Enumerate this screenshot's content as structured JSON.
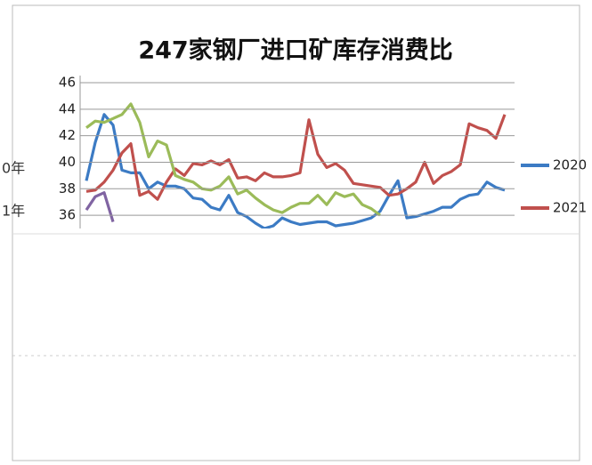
{
  "chart_data": {
    "type": "line",
    "title": "247家钢厂进口矿库存消费比",
    "side_labels": [
      "0年",
      "1年"
    ],
    "categories": [
      null,
      null,
      null,
      null,
      null,
      null,
      null,
      null,
      null,
      null,
      null,
      null,
      null,
      null,
      null,
      null,
      null,
      null,
      null,
      null,
      null,
      null,
      null,
      null,
      null,
      null,
      null,
      null,
      null,
      null,
      null,
      null,
      null,
      null,
      null,
      null,
      null,
      null,
      null,
      null,
      null,
      null,
      null,
      null,
      null,
      null,
      null,
      null
    ],
    "ylim": [
      35,
      46
    ],
    "yticks": [
      36,
      38,
      40,
      42,
      44,
      46
    ],
    "grid": true,
    "legend": "right",
    "series": [
      {
        "name": "2020",
        "color": "#3c7bc4",
        "values": [
          38.6,
          41.5,
          43.6,
          42.8,
          39.4,
          39.2,
          39.2,
          38.0,
          38.5,
          38.2,
          38.2,
          38.0,
          37.3,
          37.2,
          36.6,
          36.4,
          37.5,
          36.2,
          35.9,
          35.4,
          35.0,
          35.2,
          35.8,
          35.5,
          35.3,
          35.4,
          35.5,
          35.5,
          35.2,
          35.3,
          35.4,
          35.6,
          35.8,
          36.3,
          37.5,
          38.6,
          35.8,
          35.9,
          36.1,
          36.3,
          36.6,
          36.6,
          37.2,
          37.5,
          37.6,
          38.5,
          38.1,
          37.9
        ]
      },
      {
        "name": "2021",
        "color": "#c0504d",
        "values": [
          37.8,
          37.9,
          38.5,
          39.4,
          40.7,
          41.4,
          37.5,
          37.8,
          37.2,
          38.5,
          39.5,
          39.0,
          39.9,
          39.8,
          40.1,
          39.8,
          40.2,
          38.8,
          38.9,
          38.6,
          39.2,
          38.9,
          38.9,
          39.0,
          39.2,
          43.2,
          40.6,
          39.6,
          39.9,
          39.4,
          38.4,
          38.3,
          38.2,
          38.1,
          37.5,
          37.6,
          38.0,
          38.5,
          40.0,
          38.4,
          39.0,
          39.3,
          39.8,
          42.9,
          42.6,
          42.4,
          41.8,
          43.6
        ]
      },
      {
        "color": "#9bbb59",
        "values": [
          42.6,
          43.1,
          43.0,
          43.3,
          43.6,
          44.4,
          43.0,
          40.4,
          41.6,
          41.3,
          39.0,
          38.7,
          38.5,
          38.0,
          37.9,
          38.2,
          38.9,
          37.6,
          37.9,
          37.3,
          36.8,
          36.4,
          36.2,
          36.6,
          36.9,
          36.9,
          37.5,
          36.8,
          37.7,
          37.4,
          37.6,
          36.8,
          36.5,
          36.0,
          null,
          null,
          null,
          null,
          null,
          null,
          null,
          null,
          null,
          null,
          null,
          null,
          null,
          null
        ]
      },
      {
        "color": "#8064a2",
        "values": [
          36.4,
          37.4,
          37.7,
          35.5,
          null,
          null,
          null,
          null,
          null,
          null,
          null,
          null,
          null,
          null,
          null,
          null,
          null,
          null,
          null,
          null,
          null,
          null,
          null,
          null,
          null,
          null,
          null,
          null,
          null,
          null,
          null,
          null,
          null,
          null,
          null,
          null,
          null,
          null,
          null,
          null,
          null,
          null,
          null,
          null,
          null,
          null,
          null,
          null
        ]
      }
    ]
  }
}
